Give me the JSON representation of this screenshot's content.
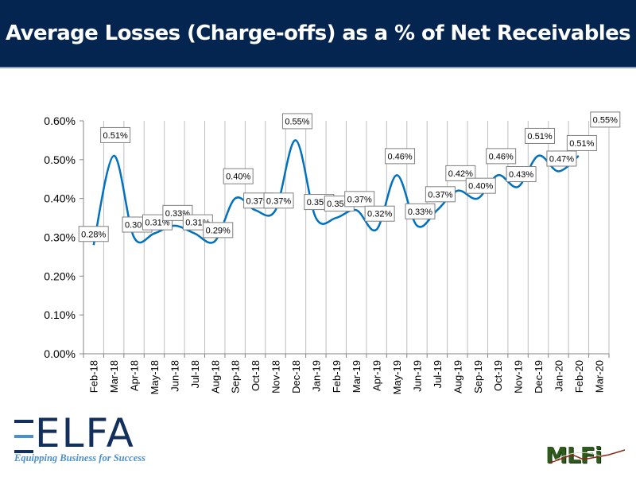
{
  "header": {
    "title": "Average Losses (Charge-offs) as a % of Net Receivables"
  },
  "colors": {
    "title_bar": "#03254f",
    "line": "#0070c0",
    "grid": "#bfbfbf",
    "axis": "#868686",
    "label_border": "#7f7f7f"
  },
  "chart_data": {
    "type": "line",
    "title": "Average Losses (Charge-offs) as a % of Net Receivables",
    "xlabel": "",
    "ylabel": "",
    "ylim": [
      0,
      0.6
    ],
    "yticks": [
      "0.00%",
      "0.10%",
      "0.20%",
      "0.30%",
      "0.40%",
      "0.50%",
      "0.60%"
    ],
    "grid": "vertical",
    "legend": "none",
    "smooth": true,
    "categories": [
      "Feb-18",
      "Mar-18",
      "Apr-18",
      "May-18",
      "Jun-18",
      "Jul-18",
      "Aug-18",
      "Sep-18",
      "Oct-18",
      "Nov-18",
      "Dec-18",
      "Jan-19",
      "Feb-19",
      "Mar-19",
      "Apr-19",
      "May-19",
      "Jun-19",
      "Jul-19",
      "Aug-19",
      "Sep-19",
      "Oct-19",
      "Nov-19",
      "Dec-19",
      "Jan-20",
      "Feb-20",
      "Mar-20"
    ],
    "series": [
      {
        "name": "Average Losses",
        "values": [
          0.28,
          0.51,
          0.3,
          0.31,
          0.33,
          0.31,
          0.29,
          0.4,
          0.37,
          0.37,
          0.55,
          0.35,
          0.35,
          0.37,
          0.32,
          0.46,
          0.33,
          0.37,
          0.42,
          0.4,
          0.46,
          0.43,
          0.51,
          0.47,
          0.51,
          0.55
        ],
        "labels": [
          "0.28%",
          "0.51%",
          "0.30%",
          "0.31%",
          "0.33%",
          "0.31%",
          "0.29%",
          "0.40%",
          "0.37%",
          "0.37%",
          "0.55%",
          "0.35%",
          "0.35%",
          "0.37%",
          "0.32%",
          "0.46%",
          "0.33%",
          "0.37%",
          "0.42%",
          "0.40%",
          "0.46%",
          "0.43%",
          "0.51%",
          "0.47%",
          "0.51%",
          "0.55%"
        ]
      }
    ]
  },
  "logos": {
    "left_name": "ELFA",
    "left_tagline": "Equipping Business for Success",
    "right_name": "MLFi"
  }
}
